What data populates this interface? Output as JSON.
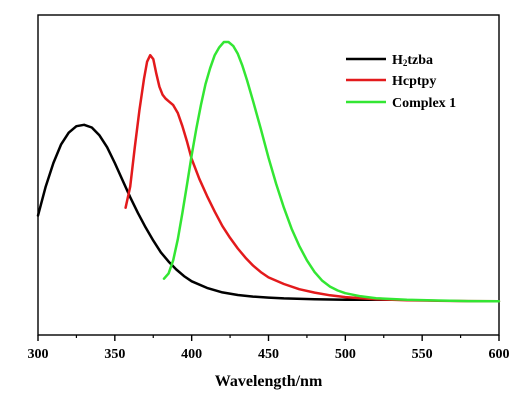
{
  "chart_data": {
    "type": "line",
    "title": "",
    "xlabel": "Wavelength/nm",
    "ylabel": "",
    "xlim": [
      300,
      600
    ],
    "ylim": [
      0,
      1.0
    ],
    "y_ticks_labeled": false,
    "x_ticks": [
      300,
      350,
      400,
      450,
      500,
      550,
      600
    ],
    "x_tick_labels": [
      "300",
      "350",
      "400",
      "450",
      "500",
      "550",
      "600"
    ],
    "grid": false,
    "legend_position": "top-right",
    "series": [
      {
        "name": "H2tzba",
        "color": "#000000",
        "points": [
          [
            300,
            0.34
          ],
          [
            305,
            0.45
          ],
          [
            310,
            0.54
          ],
          [
            315,
            0.61
          ],
          [
            320,
            0.655
          ],
          [
            325,
            0.68
          ],
          [
            330,
            0.685
          ],
          [
            335,
            0.675
          ],
          [
            340,
            0.645
          ],
          [
            345,
            0.6
          ],
          [
            350,
            0.54
          ],
          [
            355,
            0.475
          ],
          [
            360,
            0.41
          ],
          [
            365,
            0.35
          ],
          [
            370,
            0.295
          ],
          [
            375,
            0.245
          ],
          [
            380,
            0.2
          ],
          [
            385,
            0.165
          ],
          [
            390,
            0.135
          ],
          [
            395,
            0.11
          ],
          [
            400,
            0.09
          ],
          [
            410,
            0.065
          ],
          [
            420,
            0.048
          ],
          [
            430,
            0.038
          ],
          [
            440,
            0.032
          ],
          [
            450,
            0.028
          ],
          [
            460,
            0.025
          ],
          [
            480,
            0.022
          ],
          [
            500,
            0.02
          ],
          [
            520,
            0.02
          ],
          [
            532,
            0.02
          ]
        ]
      },
      {
        "name": "Hcptpy",
        "color": "#e31a1c",
        "points": [
          [
            357,
            0.37
          ],
          [
            360,
            0.45
          ],
          [
            363,
            0.6
          ],
          [
            366,
            0.74
          ],
          [
            369,
            0.86
          ],
          [
            371,
            0.925
          ],
          [
            373,
            0.95
          ],
          [
            375,
            0.935
          ],
          [
            377,
            0.88
          ],
          [
            379,
            0.83
          ],
          [
            381,
            0.8
          ],
          [
            383,
            0.785
          ],
          [
            385,
            0.775
          ],
          [
            388,
            0.76
          ],
          [
            391,
            0.73
          ],
          [
            394,
            0.68
          ],
          [
            397,
            0.62
          ],
          [
            400,
            0.555
          ],
          [
            405,
            0.48
          ],
          [
            410,
            0.415
          ],
          [
            415,
            0.355
          ],
          [
            420,
            0.3
          ],
          [
            425,
            0.255
          ],
          [
            430,
            0.215
          ],
          [
            435,
            0.18
          ],
          [
            440,
            0.15
          ],
          [
            445,
            0.125
          ],
          [
            450,
            0.105
          ],
          [
            460,
            0.08
          ],
          [
            470,
            0.06
          ],
          [
            480,
            0.047
          ],
          [
            490,
            0.037
          ],
          [
            500,
            0.03
          ],
          [
            520,
            0.022
          ],
          [
            540,
            0.018
          ],
          [
            560,
            0.016
          ],
          [
            580,
            0.015
          ],
          [
            600,
            0.014
          ]
        ]
      },
      {
        "name": "Complex 1",
        "color": "#33e633",
        "points": [
          [
            382,
            0.1
          ],
          [
            385,
            0.12
          ],
          [
            388,
            0.17
          ],
          [
            391,
            0.25
          ],
          [
            394,
            0.35
          ],
          [
            397,
            0.46
          ],
          [
            400,
            0.57
          ],
          [
            403,
            0.67
          ],
          [
            406,
            0.76
          ],
          [
            409,
            0.84
          ],
          [
            412,
            0.9
          ],
          [
            415,
            0.95
          ],
          [
            418,
            0.98
          ],
          [
            421,
            1.0
          ],
          [
            424,
            1.0
          ],
          [
            427,
            0.985
          ],
          [
            430,
            0.955
          ],
          [
            433,
            0.91
          ],
          [
            436,
            0.855
          ],
          [
            440,
            0.775
          ],
          [
            445,
            0.67
          ],
          [
            450,
            0.56
          ],
          [
            455,
            0.46
          ],
          [
            460,
            0.37
          ],
          [
            465,
            0.29
          ],
          [
            470,
            0.225
          ],
          [
            475,
            0.17
          ],
          [
            480,
            0.125
          ],
          [
            485,
            0.092
          ],
          [
            490,
            0.07
          ],
          [
            495,
            0.055
          ],
          [
            500,
            0.045
          ],
          [
            510,
            0.033
          ],
          [
            520,
            0.026
          ],
          [
            540,
            0.02
          ],
          [
            560,
            0.017
          ],
          [
            580,
            0.015
          ],
          [
            600,
            0.014
          ]
        ]
      }
    ]
  },
  "legend": {
    "items": [
      {
        "label_main": "H",
        "label_sub": "2",
        "label_rest": "tzba",
        "color": "#000000"
      },
      {
        "label_main": "Hcptpy",
        "label_sub": "",
        "label_rest": "",
        "color": "#e31a1c"
      },
      {
        "label_main": "Complex 1",
        "label_sub": "",
        "label_rest": "",
        "color": "#33e633"
      }
    ]
  }
}
